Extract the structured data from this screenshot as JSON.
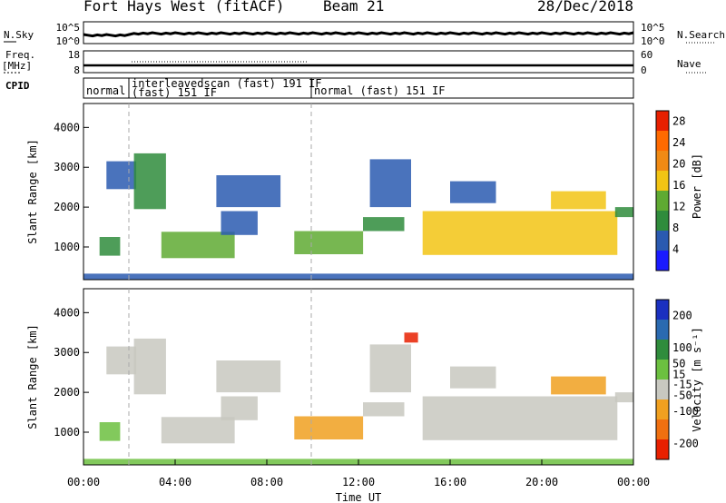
{
  "header": {
    "station": "Fort Hays West (fitACF)",
    "beam": "Beam 21",
    "date": "28/Dec/2018"
  },
  "params": {
    "nsky_label": "N.Sky",
    "nsearch_label": "N.Search",
    "freq_label_1": "Freq.",
    "freq_label_2": "[MHz]",
    "nave_label": "Nave",
    "cpid_label": "CPID",
    "nsky_ticks": [
      "10^5",
      "10^0"
    ],
    "nsearch_ticks": [
      "10^5",
      "10^0"
    ],
    "freq_ticks": [
      "18",
      "8"
    ],
    "nave_ticks": [
      "60",
      "0"
    ]
  },
  "cpid_segments": [
    {
      "label": "normal",
      "sublabel": "",
      "start": 0.0,
      "end": 2.0
    },
    {
      "label": "interleavedscan (fast) 191 IF",
      "sublabel": "(fast) 151 IF",
      "start": 2.0,
      "end": 10.0
    },
    {
      "label": "normal (fast) 151 IF",
      "sublabel": "",
      "start": 10.0,
      "end": 24.0
    }
  ],
  "chart_data": [
    {
      "type": "heatmap",
      "panel": "power",
      "ylabel": "Slant Range [km]",
      "xlabel": "",
      "xlim": [
        0,
        24
      ],
      "ylim": [
        180,
        4600
      ],
      "yticks": [
        1000,
        2000,
        3000,
        4000
      ],
      "colorbar": {
        "label": "Power [dB]",
        "ticks": [
          4,
          8,
          12,
          16,
          20,
          24,
          28
        ],
        "range": [
          0,
          30
        ],
        "colors": [
          "#1a1aff",
          "#2a5ab0",
          "#2f8c3c",
          "#5faa32",
          "#f2c414",
          "#f08a14",
          "#ff6a00",
          "#e82000"
        ]
      },
      "regions": [
        {
          "t0": 0.7,
          "t1": 1.6,
          "r0": 780,
          "r1": 1250,
          "value": 9
        },
        {
          "t0": 1.0,
          "t1": 2.3,
          "r0": 2450,
          "r1": 3150,
          "value": 6
        },
        {
          "t0": 2.2,
          "t1": 3.6,
          "r0": 1950,
          "r1": 3350,
          "value": 9
        },
        {
          "t0": 3.4,
          "t1": 6.6,
          "r0": 720,
          "r1": 1380,
          "value": 14
        },
        {
          "t0": 5.8,
          "t1": 8.6,
          "r0": 2000,
          "r1": 2800,
          "value": 7
        },
        {
          "t0": 6.0,
          "t1": 7.6,
          "r0": 1300,
          "r1": 1900,
          "value": 6
        },
        {
          "t0": 9.2,
          "t1": 12.2,
          "r0": 820,
          "r1": 1400,
          "value": 13
        },
        {
          "t0": 12.2,
          "t1": 14.0,
          "r0": 1400,
          "r1": 1750,
          "value": 8
        },
        {
          "t0": 12.5,
          "t1": 14.3,
          "r0": 2000,
          "r1": 3200,
          "value": 5
        },
        {
          "t0": 14.8,
          "t1": 23.3,
          "r0": 800,
          "r1": 1900,
          "value": 17
        },
        {
          "t0": 16.0,
          "t1": 18.0,
          "r0": 2100,
          "r1": 2650,
          "value": 6
        },
        {
          "t0": 20.4,
          "t1": 22.8,
          "r0": 1950,
          "r1": 2400,
          "value": 16
        },
        {
          "t0": 23.2,
          "t1": 24.0,
          "r0": 1750,
          "r1": 2000,
          "value": 10
        },
        {
          "t0": 0.0,
          "t1": 24.0,
          "r0": 180,
          "r1": 330,
          "value": 5
        }
      ]
    },
    {
      "type": "heatmap",
      "panel": "velocity",
      "ylabel": "Slant Range [km]",
      "xlabel": "Time UT",
      "xlim": [
        0,
        24
      ],
      "ylim": [
        180,
        4600
      ],
      "yticks": [
        1000,
        2000,
        3000,
        4000
      ],
      "xticks": [
        "00:00",
        "04:00",
        "08:00",
        "12:00",
        "16:00",
        "20:00",
        "00:00"
      ],
      "colorbar": {
        "label": "Velocity [m s⁻¹]",
        "ticks": [
          200,
          100,
          50,
          15,
          -15,
          -50,
          -100,
          -200
        ],
        "range": [
          -250,
          250
        ],
        "colors": [
          "#1a30c0",
          "#2a6ab0",
          "#2f8c3c",
          "#6cc040",
          "#c8c8c0",
          "#f0a020",
          "#f07010",
          "#e82000"
        ]
      },
      "regions": [
        {
          "t0": 0.7,
          "t1": 1.6,
          "r0": 780,
          "r1": 1250,
          "value": 40
        },
        {
          "t0": 1.0,
          "t1": 2.3,
          "r0": 2450,
          "r1": 3150,
          "value": 0
        },
        {
          "t0": 2.2,
          "t1": 3.6,
          "r0": 1950,
          "r1": 3350,
          "value": 0
        },
        {
          "t0": 3.4,
          "t1": 6.6,
          "r0": 720,
          "r1": 1380,
          "value": -60
        },
        {
          "t0": 5.8,
          "t1": 8.6,
          "r0": 2000,
          "r1": 2800,
          "value": 0
        },
        {
          "t0": 6.0,
          "t1": 7.6,
          "r0": 1300,
          "r1": 1900,
          "value": -40
        },
        {
          "t0": 9.2,
          "t1": 12.2,
          "r0": 820,
          "r1": 1400,
          "value": -70
        },
        {
          "t0": 12.2,
          "t1": 14.0,
          "r0": 1400,
          "r1": 1750,
          "value": 0
        },
        {
          "t0": 12.5,
          "t1": 14.3,
          "r0": 2000,
          "r1": 3200,
          "value": 0
        },
        {
          "t0": 14.8,
          "t1": 23.3,
          "r0": 800,
          "r1": 1900,
          "value": 0
        },
        {
          "t0": 16.0,
          "t1": 18.0,
          "r0": 2100,
          "r1": 2650,
          "value": 0
        },
        {
          "t0": 20.4,
          "t1": 22.8,
          "r0": 1950,
          "r1": 2400,
          "value": -90
        },
        {
          "t0": 23.2,
          "t1": 24.0,
          "r0": 1750,
          "r1": 2000,
          "value": -60
        },
        {
          "t0": 0.0,
          "t1": 24.0,
          "r0": 180,
          "r1": 330,
          "value": 30
        },
        {
          "t0": 14.0,
          "t1": 14.6,
          "r0": 3250,
          "r1": 3500,
          "value": -200
        }
      ]
    }
  ]
}
